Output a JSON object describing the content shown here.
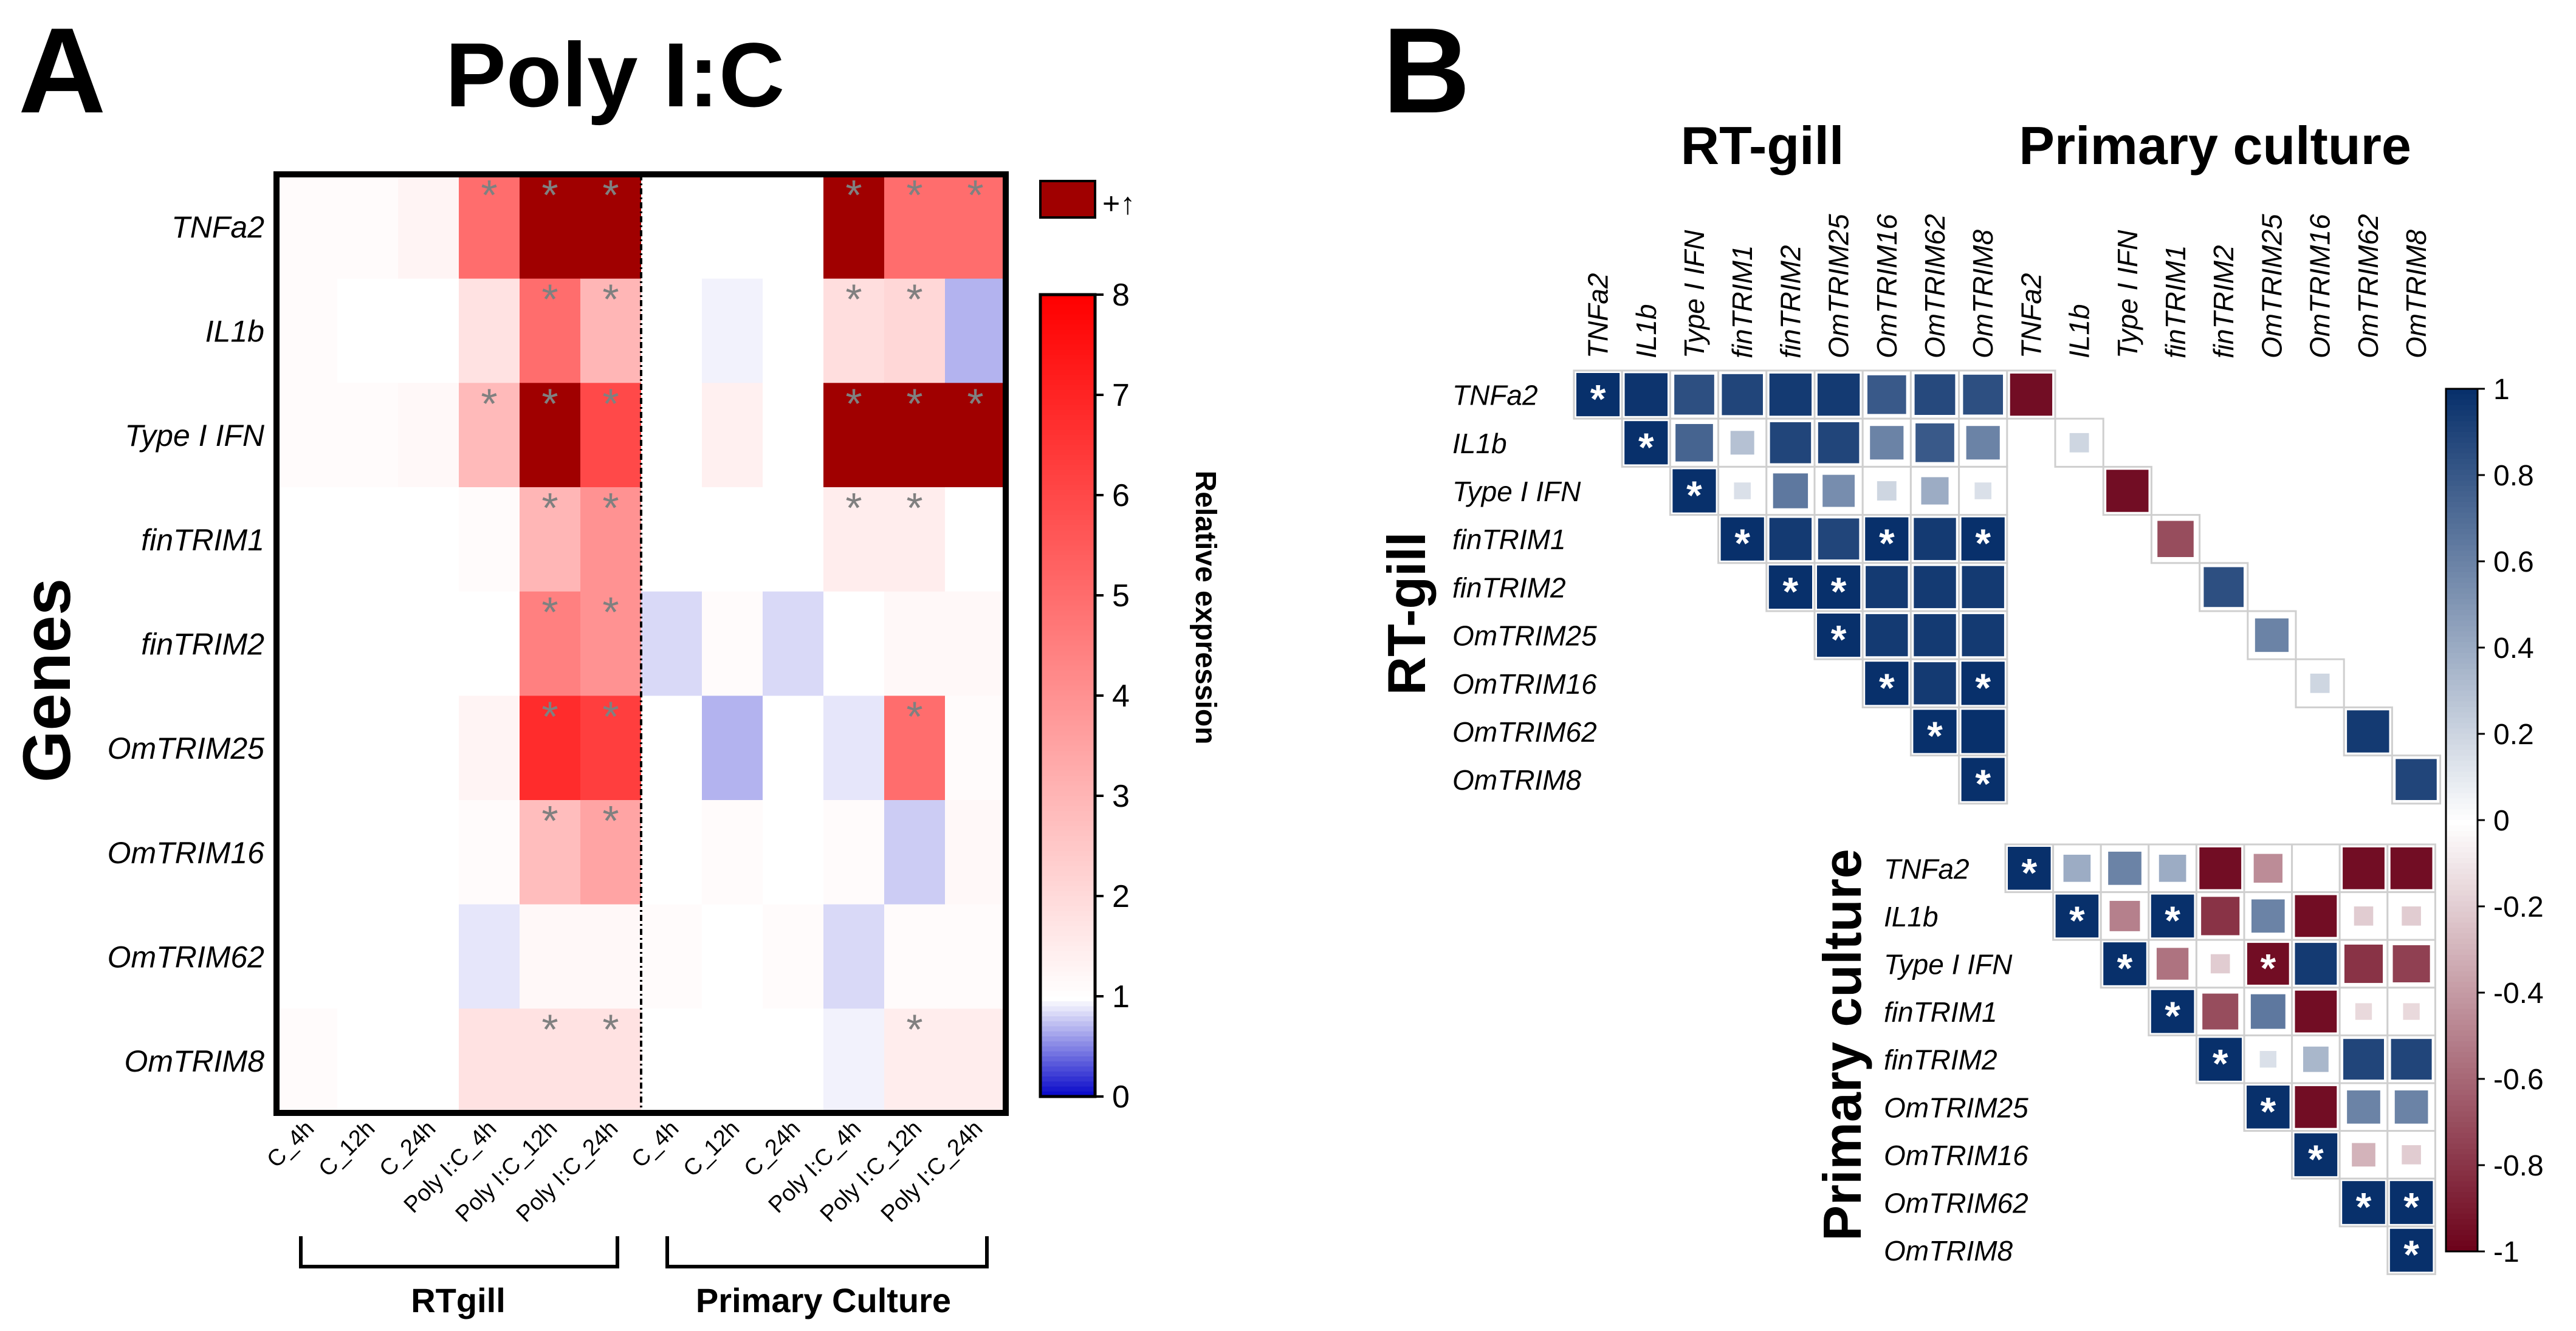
{
  "panel_a": {
    "letter": "A",
    "title": "Poly I:C",
    "y_axis_label": "Genes",
    "colorbar_label": "Relative expression",
    "overflow_label": "+↑",
    "group_labels": [
      "RTgill",
      "Primary Culture"
    ]
  },
  "panel_b": {
    "letter": "B",
    "group_label_rt": "RT-gill",
    "group_label_primary": "Primary culture",
    "side_label_rt": "RT-gill",
    "side_label_primary": "Primary culture"
  },
  "colors": {
    "heat_low": "#0000c8",
    "heat_mid": "#ffffff",
    "heat_high": "#ff0000",
    "heat_over": "#a00000",
    "corr_neg": "#6b0018",
    "corr_pos": "#08306b",
    "star_a": "#808080",
    "star_b": "#ffffff"
  },
  "chart_data": [
    {
      "type": "heatmap",
      "title": "Poly I:C",
      "ylabel": "Genes",
      "colorbar_label": "Relative expression",
      "colorbar_range": [
        0,
        8
      ],
      "colorbar_ticks": [
        "0",
        "1",
        "2",
        "3",
        "4",
        "5",
        "6",
        "7",
        "8"
      ],
      "rows": [
        "TNFa2",
        "IL1b",
        "Type I IFN",
        "finTRIM1",
        "finTRIM2",
        "OmTRIM25",
        "OmTRIM16",
        "OmTRIM62",
        "OmTRIM8"
      ],
      "columns": [
        "C_4h",
        "C_12h",
        "C_24h",
        "Poly I:C_4h",
        "Poly I:C_12h",
        "Poly I:C_24h",
        "C_4h",
        "C_12h",
        "C_24h",
        "Poly I:C_4h",
        "Poly I:C_12h",
        "Poly I:C_24h"
      ],
      "column_groups": [
        {
          "label": "RTgill",
          "columns": [
            0,
            5
          ]
        },
        {
          "label": "Primary Culture",
          "columns": [
            6,
            11
          ]
        }
      ],
      "values": [
        [
          1.1,
          1.1,
          1.3,
          5.0,
          9.0,
          9.0,
          1.0,
          1.0,
          1.0,
          9.0,
          5.0,
          5.0
        ],
        [
          1.1,
          1.0,
          1.0,
          1.8,
          5.0,
          3.0,
          1.0,
          0.95,
          1.0,
          1.9,
          2.1,
          0.7
        ],
        [
          1.1,
          1.1,
          1.2,
          2.9,
          9.0,
          6.0,
          1.0,
          1.4,
          1.0,
          9.0,
          9.0,
          9.0
        ],
        [
          1.0,
          1.0,
          1.0,
          1.1,
          3.0,
          4.0,
          1.0,
          1.0,
          1.0,
          1.5,
          1.5,
          1.0
        ],
        [
          1.0,
          1.0,
          1.0,
          1.0,
          4.5,
          4.0,
          0.85,
          1.1,
          0.85,
          1.0,
          1.2,
          1.2
        ],
        [
          1.0,
          1.0,
          1.0,
          1.3,
          6.8,
          6.3,
          1.0,
          0.7,
          1.0,
          0.9,
          5.0,
          1.1
        ],
        [
          1.0,
          1.0,
          1.0,
          1.1,
          2.8,
          3.5,
          1.0,
          1.1,
          1.0,
          1.1,
          0.8,
          1.2
        ],
        [
          1.0,
          1.0,
          1.0,
          0.9,
          1.2,
          1.2,
          1.1,
          1.0,
          1.1,
          0.85,
          1.1,
          1.1
        ],
        [
          1.1,
          1.0,
          1.0,
          1.8,
          1.8,
          1.8,
          1.0,
          1.0,
          1.0,
          0.95,
          1.5,
          1.5
        ]
      ],
      "overflow_note": "values of 9.0 denote cells above the scale maximum (+↑)",
      "significant": [
        [
          0,
          3
        ],
        [
          0,
          4
        ],
        [
          0,
          5
        ],
        [
          0,
          9
        ],
        [
          0,
          10
        ],
        [
          0,
          11
        ],
        [
          1,
          4
        ],
        [
          1,
          5
        ],
        [
          1,
          9
        ],
        [
          1,
          10
        ],
        [
          2,
          3
        ],
        [
          2,
          4
        ],
        [
          2,
          5
        ],
        [
          2,
          9
        ],
        [
          2,
          10
        ],
        [
          2,
          11
        ],
        [
          3,
          4
        ],
        [
          3,
          5
        ],
        [
          3,
          9
        ],
        [
          3,
          10
        ],
        [
          4,
          4
        ],
        [
          4,
          5
        ],
        [
          5,
          4
        ],
        [
          5,
          5
        ],
        [
          5,
          10
        ],
        [
          6,
          4
        ],
        [
          6,
          5
        ],
        [
          8,
          4
        ],
        [
          8,
          5
        ],
        [
          8,
          10
        ]
      ]
    },
    {
      "type": "heatmap",
      "subtype": "correlation_matrix",
      "colorbar_range": [
        -1,
        1
      ],
      "colorbar_ticks": [
        "1",
        "0.8",
        "0.6",
        "0.4",
        "0.2",
        "0",
        "-0.2",
        "-0.4",
        "-0.6",
        "-0.8",
        "-1"
      ],
      "genes": [
        "TNFa2",
        "IL1b",
        "Type I IFN",
        "finTRIM1",
        "finTRIM2",
        "OmTRIM25",
        "OmTRIM16",
        "OmTRIM62",
        "OmTRIM8"
      ],
      "rt_gill": [
        [
          1.0,
          0.98,
          0.85,
          0.9,
          0.95,
          0.95,
          0.8,
          0.88,
          0.85
        ],
        [
          null,
          1.0,
          0.75,
          0.3,
          0.9,
          0.9,
          0.6,
          0.8,
          0.6
        ],
        [
          null,
          null,
          1.0,
          0.15,
          0.65,
          0.55,
          0.2,
          0.4,
          0.15
        ],
        [
          null,
          null,
          null,
          1.0,
          0.95,
          0.9,
          1.0,
          0.95,
          1.0
        ],
        [
          null,
          null,
          null,
          null,
          1.0,
          1.0,
          0.95,
          0.95,
          0.95
        ],
        [
          null,
          null,
          null,
          null,
          null,
          1.0,
          0.95,
          0.95,
          0.95
        ],
        [
          null,
          null,
          null,
          null,
          null,
          null,
          1.0,
          0.95,
          1.0
        ],
        [
          null,
          null,
          null,
          null,
          null,
          null,
          null,
          1.0,
          1.0
        ],
        [
          null,
          null,
          null,
          null,
          null,
          null,
          null,
          null,
          1.0
        ]
      ],
      "rt_gill_significant": [
        [
          0,
          0
        ],
        [
          1,
          1
        ],
        [
          2,
          2
        ],
        [
          3,
          3
        ],
        [
          3,
          6
        ],
        [
          3,
          8
        ],
        [
          4,
          4
        ],
        [
          4,
          5
        ],
        [
          5,
          5
        ],
        [
          6,
          6
        ],
        [
          6,
          8
        ],
        [
          7,
          7
        ],
        [
          8,
          8
        ]
      ],
      "primary_culture": [
        [
          1.0,
          0.4,
          0.6,
          0.4,
          -0.95,
          -0.45,
          0.0,
          -0.95,
          -0.95
        ],
        [
          null,
          1.0,
          -0.5,
          1.0,
          -0.8,
          0.6,
          -0.95,
          -0.2,
          -0.2
        ],
        [
          null,
          null,
          1.0,
          -0.55,
          -0.2,
          -0.95,
          0.95,
          -0.8,
          -0.75
        ],
        [
          null,
          null,
          null,
          1.0,
          -0.7,
          0.65,
          -0.95,
          -0.15,
          -0.15
        ],
        [
          null,
          null,
          null,
          null,
          1.0,
          0.15,
          0.35,
          0.9,
          0.9
        ],
        [
          null,
          null,
          null,
          null,
          null,
          1.0,
          -0.95,
          0.6,
          0.6
        ],
        [
          null,
          null,
          null,
          null,
          null,
          null,
          1.0,
          -0.3,
          -0.2
        ],
        [
          null,
          null,
          null,
          null,
          null,
          null,
          null,
          1.0,
          1.0
        ],
        [
          null,
          null,
          null,
          null,
          null,
          null,
          null,
          null,
          1.0
        ]
      ],
      "primary_significant": [
        [
          0,
          0
        ],
        [
          1,
          1
        ],
        [
          1,
          3
        ],
        [
          2,
          2
        ],
        [
          2,
          5
        ],
        [
          3,
          3
        ],
        [
          4,
          4
        ],
        [
          5,
          5
        ],
        [
          6,
          6
        ],
        [
          7,
          7
        ],
        [
          7,
          8
        ],
        [
          8,
          8
        ]
      ],
      "cross_diagonal_rt_vs_primary": [
        -0.95,
        0.2,
        -0.95,
        -0.7,
        0.85,
        0.6,
        0.2,
        0.95,
        0.9
      ]
    }
  ]
}
